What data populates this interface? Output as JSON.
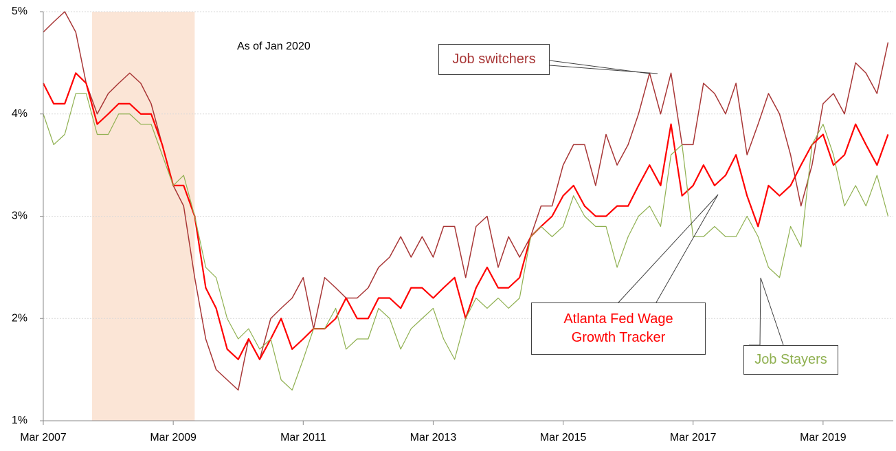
{
  "chart_data": {
    "type": "line",
    "annotation": "As of Jan 2020",
    "x": [
      2007.17,
      2007.33,
      2007.5,
      2007.67,
      2007.83,
      2008,
      2008.17,
      2008.33,
      2008.5,
      2008.67,
      2008.83,
      2009,
      2009.17,
      2009.33,
      2009.5,
      2009.67,
      2009.83,
      2010,
      2010.17,
      2010.33,
      2010.5,
      2010.67,
      2010.83,
      2011,
      2011.17,
      2011.33,
      2011.5,
      2011.67,
      2011.83,
      2012,
      2012.17,
      2012.33,
      2012.5,
      2012.67,
      2012.83,
      2013,
      2013.17,
      2013.33,
      2013.5,
      2013.67,
      2013.83,
      2014,
      2014.17,
      2014.33,
      2014.5,
      2014.67,
      2014.83,
      2015,
      2015.17,
      2015.33,
      2015.5,
      2015.67,
      2015.83,
      2016,
      2016.17,
      2016.33,
      2016.5,
      2016.67,
      2016.83,
      2017,
      2017.17,
      2017.33,
      2017.5,
      2017.67,
      2017.83,
      2018,
      2018.17,
      2018.33,
      2018.5,
      2018.67,
      2018.83,
      2019,
      2019.17,
      2019.33,
      2019.5,
      2019.67,
      2019.83,
      2020,
      2020.17
    ],
    "series": [
      {
        "name": "Job switchers",
        "color": "#a83636",
        "width": 1.5,
        "values": [
          4.8,
          4.9,
          5.0,
          4.8,
          4.3,
          4.0,
          4.2,
          4.3,
          4.4,
          4.3,
          4.1,
          3.7,
          3.3,
          3.1,
          2.4,
          1.8,
          1.5,
          1.4,
          1.3,
          1.8,
          1.6,
          2.0,
          2.1,
          2.2,
          2.4,
          1.9,
          2.4,
          2.3,
          2.2,
          2.2,
          2.3,
          2.5,
          2.6,
          2.8,
          2.6,
          2.8,
          2.6,
          2.9,
          2.9,
          2.4,
          2.9,
          3.0,
          2.5,
          2.8,
          2.6,
          2.8,
          3.1,
          3.1,
          3.5,
          3.7,
          3.7,
          3.3,
          3.8,
          3.5,
          3.7,
          4.0,
          4.4,
          4.0,
          4.4,
          3.7,
          3.7,
          4.3,
          4.2,
          4.0,
          4.3,
          3.6,
          3.9,
          4.2,
          4.0,
          3.6,
          3.1,
          3.5,
          4.1,
          4.2,
          4.0,
          4.5,
          4.4,
          4.2,
          4.7
        ]
      },
      {
        "name": "Atlanta Fed Wage Growth Tracker",
        "color": "#ff0000",
        "width": 2.2,
        "values": [
          4.3,
          4.1,
          4.1,
          4.4,
          4.3,
          3.9,
          4.0,
          4.1,
          4.1,
          4.0,
          4.0,
          3.7,
          3.3,
          3.3,
          3.0,
          2.3,
          2.1,
          1.7,
          1.6,
          1.8,
          1.6,
          1.8,
          2.0,
          1.7,
          1.8,
          1.9,
          1.9,
          2.0,
          2.2,
          2.0,
          2.0,
          2.2,
          2.2,
          2.1,
          2.3,
          2.3,
          2.2,
          2.3,
          2.4,
          2.0,
          2.3,
          2.5,
          2.3,
          2.3,
          2.4,
          2.8,
          2.9,
          3.0,
          3.2,
          3.3,
          3.1,
          3.0,
          3.0,
          3.1,
          3.1,
          3.3,
          3.5,
          3.3,
          3.9,
          3.2,
          3.3,
          3.5,
          3.3,
          3.4,
          3.6,
          3.2,
          2.9,
          3.3,
          3.2,
          3.3,
          3.5,
          3.7,
          3.8,
          3.5,
          3.6,
          3.9,
          3.7,
          3.5,
          3.8
        ]
      },
      {
        "name": "Job Stayers",
        "color": "#8fb050",
        "width": 1.2,
        "values": [
          4.0,
          3.7,
          3.8,
          4.2,
          4.2,
          3.8,
          3.8,
          4.0,
          4.0,
          3.9,
          3.9,
          3.6,
          3.3,
          3.4,
          3.0,
          2.5,
          2.4,
          2.0,
          1.8,
          1.9,
          1.7,
          1.8,
          1.4,
          1.3,
          1.6,
          1.9,
          1.9,
          2.1,
          1.7,
          1.8,
          1.8,
          2.1,
          2.0,
          1.7,
          1.9,
          2.0,
          2.1,
          1.8,
          1.6,
          2.0,
          2.2,
          2.1,
          2.2,
          2.1,
          2.2,
          2.8,
          2.9,
          2.8,
          2.9,
          3.2,
          3.0,
          2.9,
          2.9,
          2.5,
          2.8,
          3.0,
          3.1,
          2.9,
          3.6,
          3.7,
          2.8,
          2.8,
          2.9,
          2.8,
          2.8,
          3.0,
          2.8,
          2.5,
          2.4,
          2.9,
          2.7,
          3.7,
          3.9,
          3.6,
          3.1,
          3.3,
          3.1,
          3.4,
          3.0
        ]
      }
    ],
    "recession_shading": [
      2007.92,
      2009.5
    ],
    "shading_color": "#fbe5d6",
    "xlim": [
      2007.17,
      2020.25
    ],
    "xticks": [
      {
        "value": 2007.17,
        "label": "Mar 2007"
      },
      {
        "value": 2009.17,
        "label": "Mar 2009"
      },
      {
        "value": 2011.17,
        "label": "Mar 2011"
      },
      {
        "value": 2013.17,
        "label": "Mar 2013"
      },
      {
        "value": 2015.17,
        "label": "Mar 2015"
      },
      {
        "value": 2017.17,
        "label": "Mar 2017"
      },
      {
        "value": 2019.17,
        "label": "Mar 2019"
      }
    ],
    "ylim": [
      1,
      5
    ],
    "yticks": [
      {
        "value": 1,
        "label": "1%"
      },
      {
        "value": 2,
        "label": "2%"
      },
      {
        "value": 3,
        "label": "3%"
      },
      {
        "value": 4,
        "label": "4%"
      },
      {
        "value": 5,
        "label": "5%"
      }
    ],
    "grid": true
  }
}
